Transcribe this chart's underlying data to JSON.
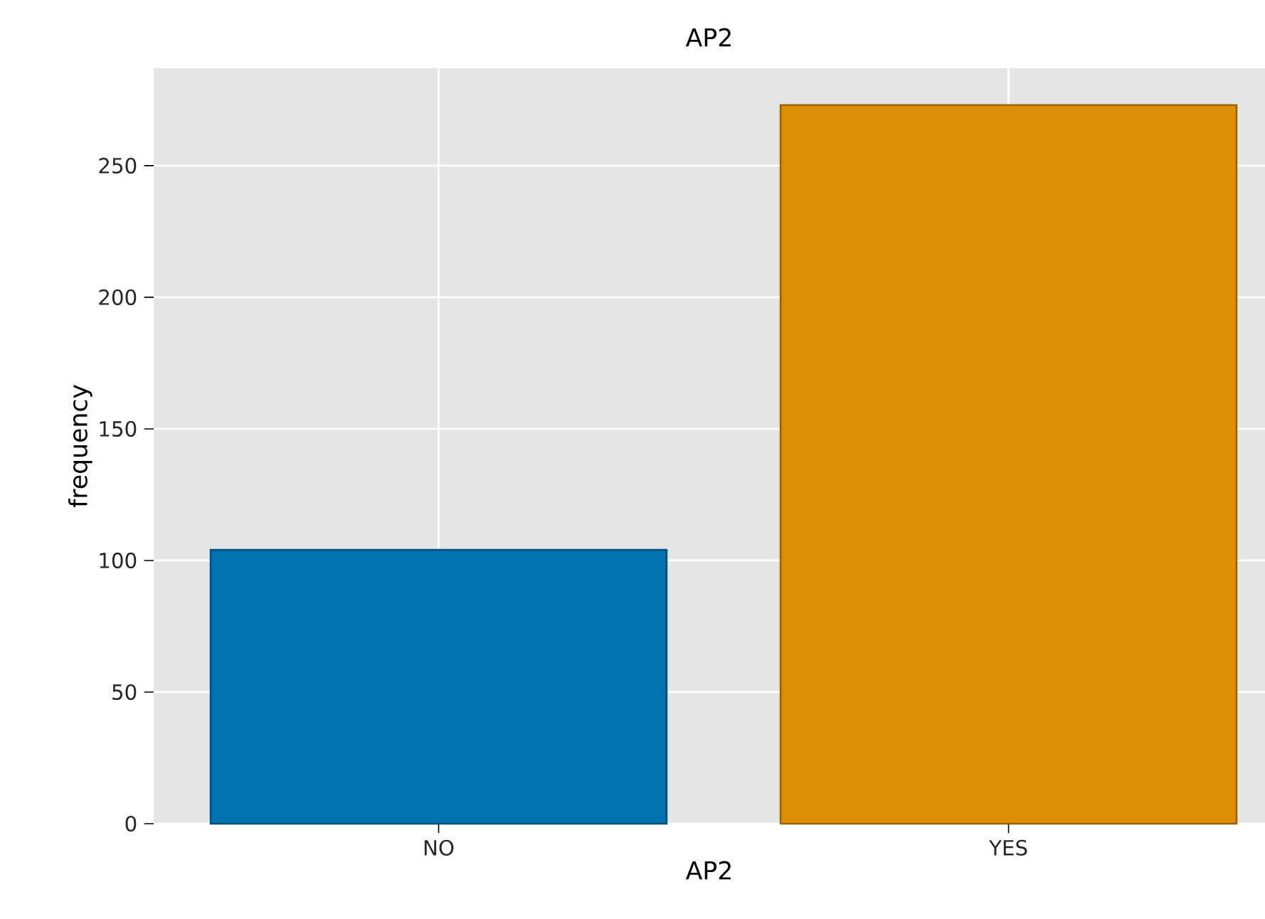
{
  "chart_data": {
    "type": "bar",
    "title": "AP2",
    "xlabel": "AP2",
    "ylabel": "frequency",
    "categories": [
      "NO",
      "YES"
    ],
    "values": [
      104,
      273
    ],
    "colors": [
      "#0072b2",
      "#de8f05"
    ],
    "ylim": [
      0,
      287
    ],
    "yticks": [
      0,
      50,
      100,
      150,
      200,
      250
    ],
    "grid": true
  }
}
